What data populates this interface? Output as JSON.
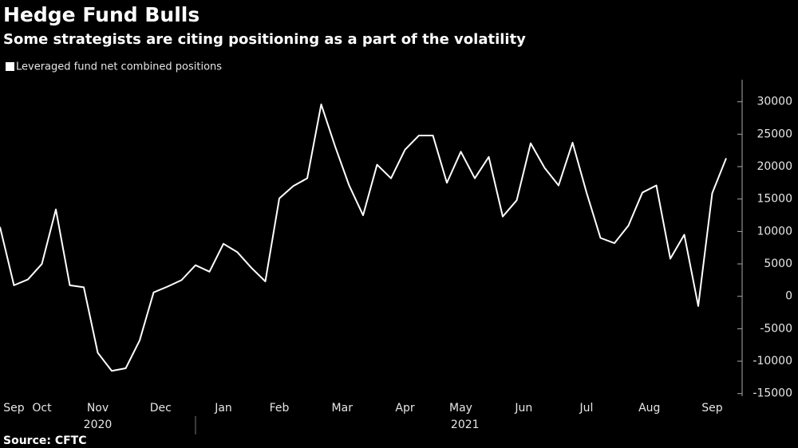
{
  "chart_data": {
    "type": "line",
    "title": "Hedge Fund Bulls",
    "subtitle": "Some strategists are citing positioning as a part of the volatility",
    "source": "Source: CFTC",
    "series": [
      {
        "name": "Leveraged fund net combined positions",
        "color": "#ffffff",
        "values": [
          10700,
          1700,
          2600,
          5000,
          13400,
          1700,
          1400,
          -8700,
          -11500,
          -11100,
          -6800,
          600,
          1500,
          2500,
          4800,
          3800,
          8100,
          6800,
          4400,
          2300,
          15100,
          17000,
          18200,
          29600,
          23100,
          17100,
          12500,
          20300,
          18200,
          22600,
          24800,
          24800,
          17500,
          22300,
          18200,
          21500,
          12300,
          14800,
          23600,
          19800,
          17100,
          23700,
          16000,
          9000,
          8200,
          10900,
          16000,
          17100,
          5800,
          9500,
          -1500,
          15900,
          21300
        ]
      }
    ],
    "xticks": [
      {
        "value": 1,
        "label": "Sep"
      },
      {
        "value": 3,
        "label": "Oct"
      },
      {
        "value": 7,
        "label": "Nov"
      },
      {
        "value": 11.5,
        "label": "Dec"
      },
      {
        "value": 16,
        "label": "Jan"
      },
      {
        "value": 20,
        "label": "Feb"
      },
      {
        "value": 24.5,
        "label": "Mar"
      },
      {
        "value": 29,
        "label": "Apr"
      },
      {
        "value": 33,
        "label": "May"
      },
      {
        "value": 37.5,
        "label": "Jun"
      },
      {
        "value": 42,
        "label": "Jul"
      },
      {
        "value": 46.5,
        "label": "Aug"
      },
      {
        "value": 51,
        "label": "Sep"
      }
    ],
    "year_labels": [
      {
        "value": 7,
        "label": "2020"
      },
      {
        "value": 33.3,
        "label": "2021"
      }
    ],
    "ylim": [
      -15400,
      33400
    ],
    "yticks": [
      30000,
      25000,
      20000,
      15000,
      10000,
      5000,
      0,
      -5000,
      -10000,
      -15000
    ]
  }
}
